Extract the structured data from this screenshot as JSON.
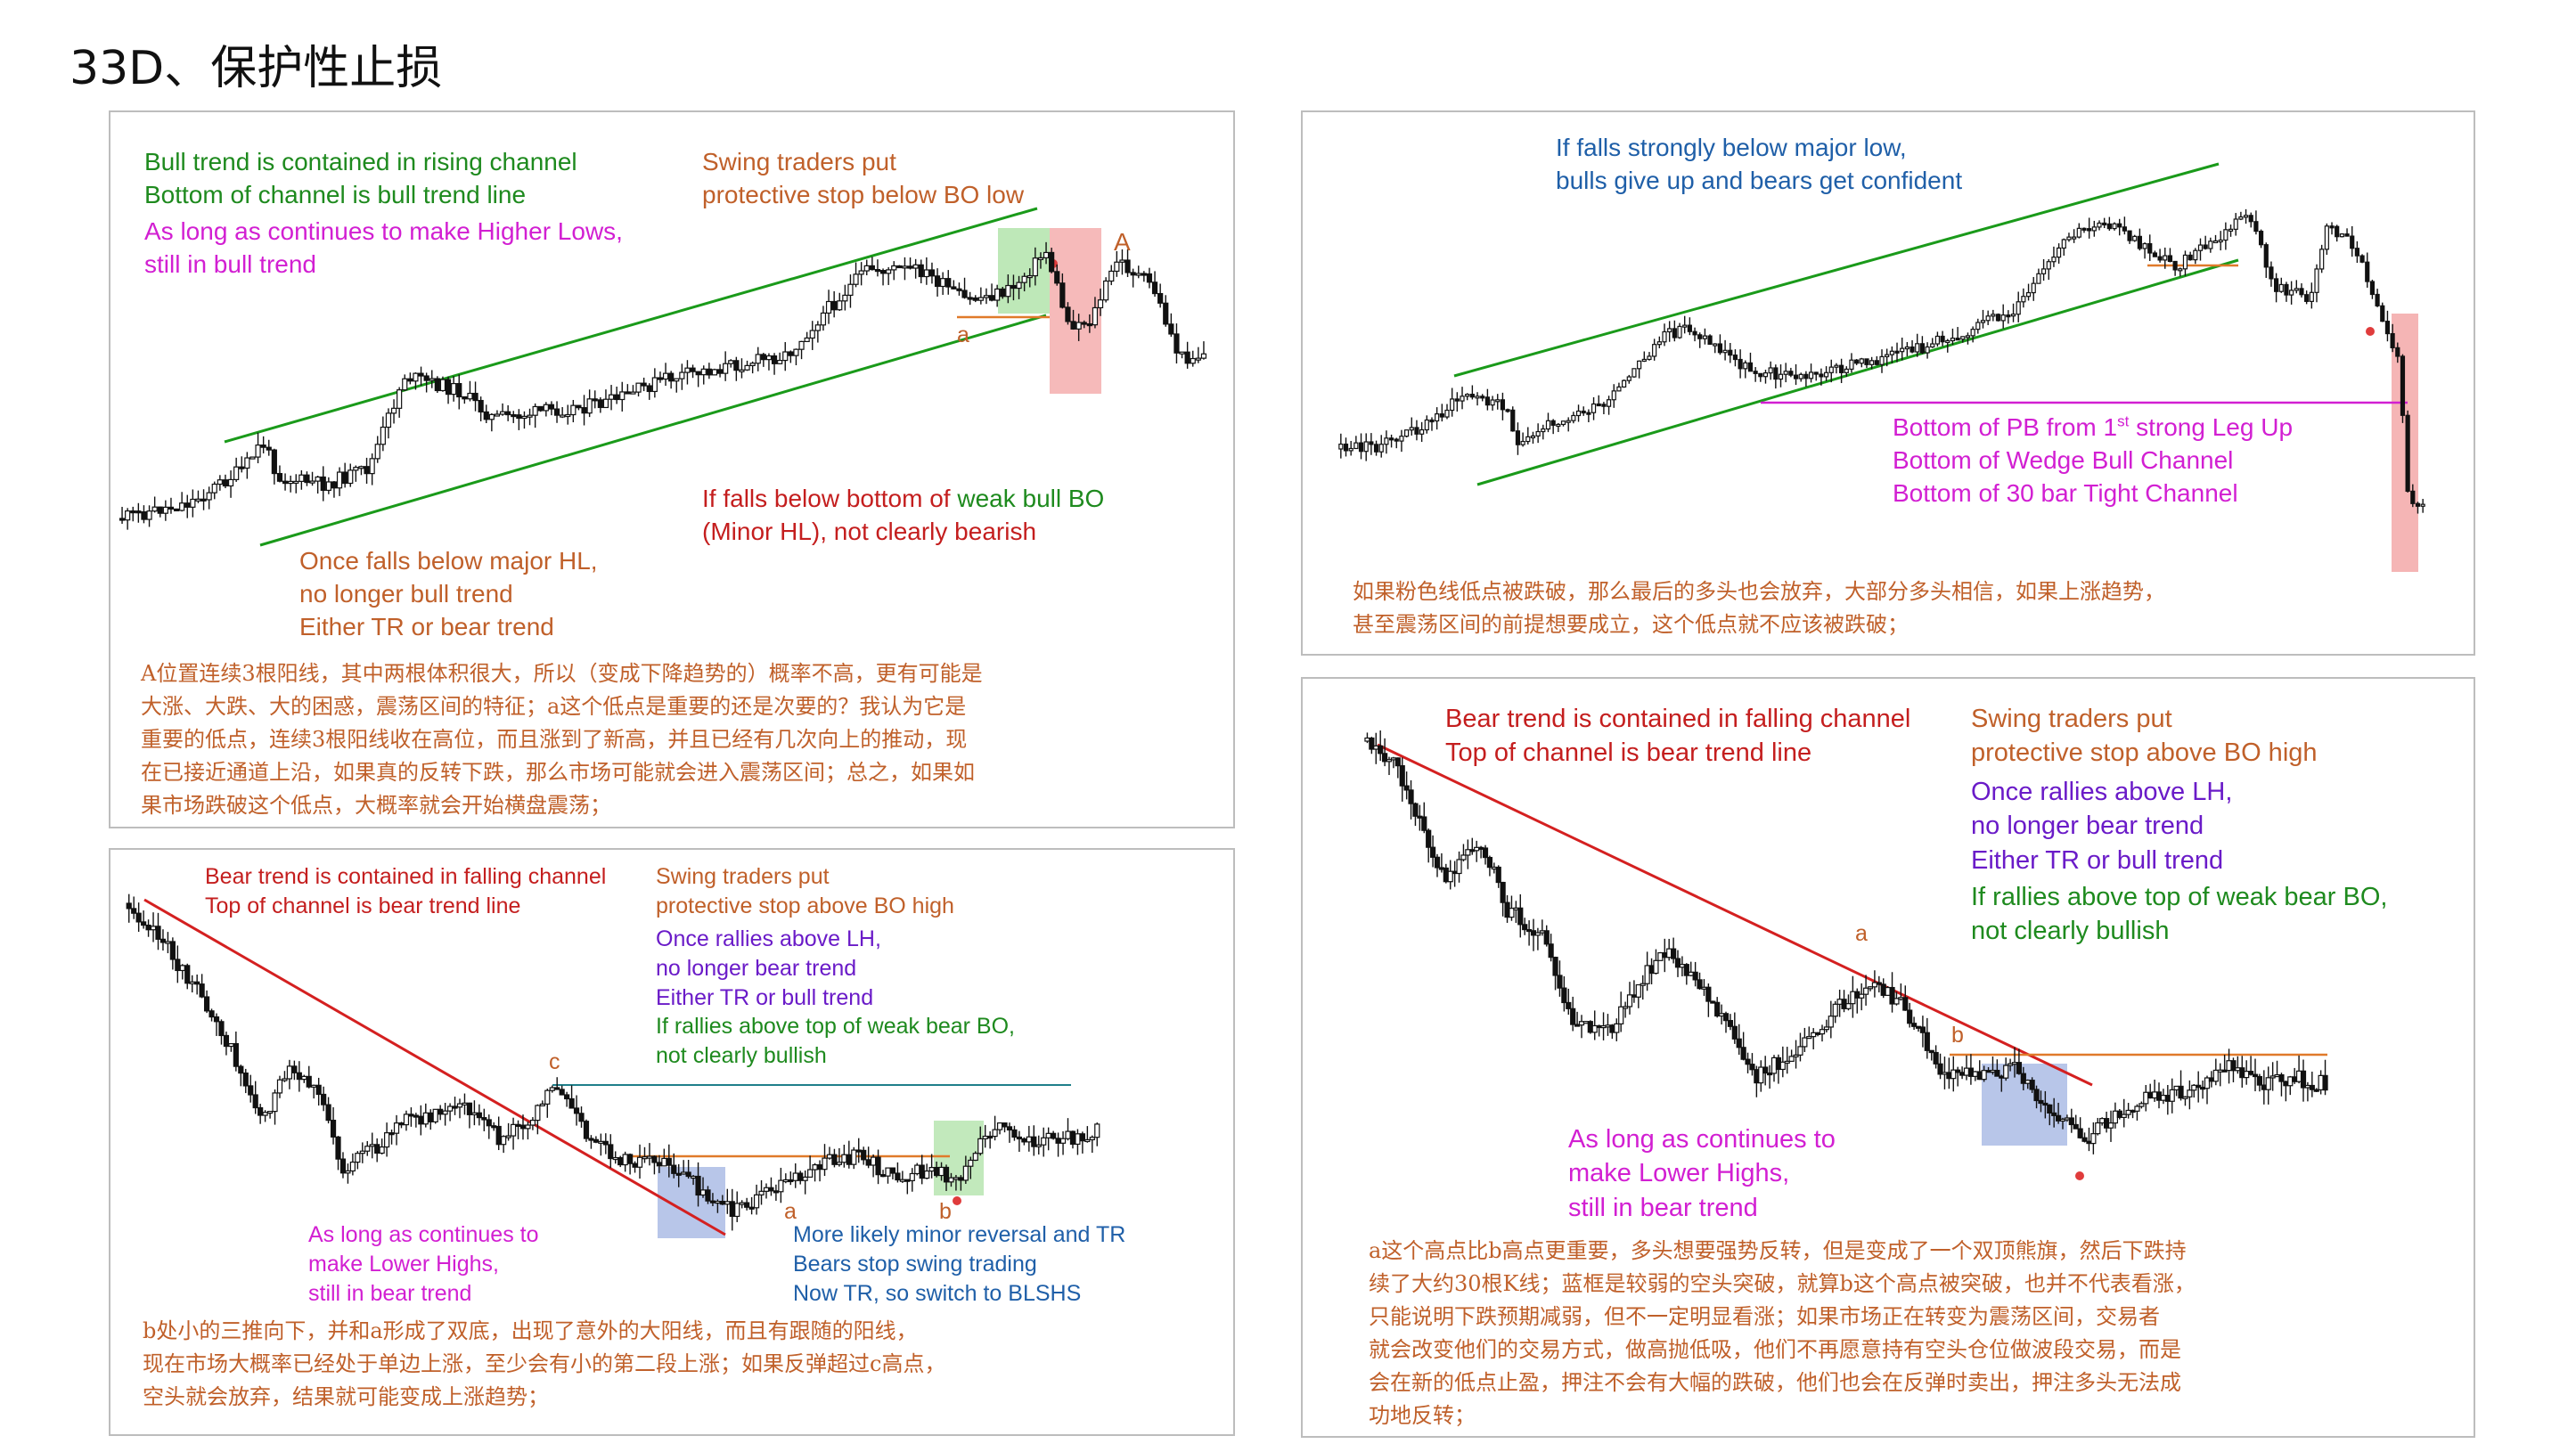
{
  "page_title": "33D、保护性止损",
  "panel1": {
    "bull_channel": [
      "Bull trend is contained in rising channel",
      "Bottom of channel is bull trend line"
    ],
    "higher_lows": [
      "As long as continues to make Higher Lows,",
      "still in bull trend"
    ],
    "swing_stop": [
      "Swing traders put",
      "protective stop below BO low"
    ],
    "weak_bo_1": "If falls below bottom of",
    "weak_bo_2": "weak bull BO",
    "weak_bo_3": "(Minor HL), not clearly bearish",
    "major_hl": [
      "Once falls below major HL,",
      "no longer bull trend",
      "Either TR or bear trend"
    ],
    "mark_a": "a",
    "mark_A": "A",
    "zh": [
      "A位置连续3根阳线，其中两根体积很大，所以（变成下降趋势的）概率不高，更有可能是",
      "大涨、大跌、大的困惑，震荡区间的特征；a这个低点是重要的还是次要的？我认为它是",
      "重要的低点，连续3根阳线收在高位，而且涨到了新高，并且已经有几次向上的推动，现",
      "在已接近通道上沿，如果真的反转下跌，那么市场可能就会进入震荡区间；总之，如果如",
      "果市场跌破这个低点，大概率就会开始横盘震荡；"
    ]
  },
  "panel2": {
    "strong_below": [
      "If falls strongly below major low,",
      "bulls give up and bears get confident"
    ],
    "pb_1_pre": "Bottom of PB from 1",
    "pb_1_sup": "st",
    "pb_1_post": " strong Leg Up",
    "pb_2": "Bottom of Wedge Bull Channel",
    "pb_3": "Bottom of 30 bar Tight Channel",
    "zh": [
      "如果粉色线低点被跌破，那么最后的多头也会放弃，大部分多头相信，如果上涨趋势，",
      "甚至震荡区间的前提想要成立，这个低点就不应该被跌破；"
    ]
  },
  "panel3": {
    "bear_channel": [
      "Bear trend is contained in falling channel",
      "Top of channel is bear trend line"
    ],
    "swing_stop": [
      "Swing traders put",
      "protective stop above BO high"
    ],
    "rallies_lh": [
      "Once rallies above LH,",
      "no longer bear trend",
      "Either TR or bull trend"
    ],
    "weak_bear": [
      "If rallies above top of weak bear BO,",
      "not clearly bullish"
    ],
    "lower_highs": [
      "As long as continues to",
      "make Lower Highs,",
      "still in bear trend"
    ],
    "minor_rev": [
      "More likely minor reversal and TR",
      "Bears stop swing trading",
      "Now TR, so switch to BLSHS"
    ],
    "mark_a": "a",
    "mark_b": "b",
    "mark_c": "c",
    "zh": [
      "b处小的三推向下，并和a形成了双底，出现了意外的大阳线，而且有跟随的阳线，",
      "现在市场大概率已经处于单边上涨，至少会有小的第二段上涨；如果反弹超过c高点，",
      "空头就会放弃，结果就可能变成上涨趋势；"
    ]
  },
  "panel4": {
    "bear_channel": [
      "Bear trend is contained in falling channel",
      "Top of channel is bear trend line"
    ],
    "swing_stop": [
      "Swing traders put",
      "protective stop above BO high"
    ],
    "rallies_lh": [
      "Once rallies above LH,",
      "no longer bear trend",
      "Either TR or bull trend"
    ],
    "weak_bear": [
      "If rallies above top of weak bear BO,",
      "not clearly bullish"
    ],
    "lower_highs": [
      "As long as continues to",
      "make Lower Highs,",
      "still in bear trend"
    ],
    "mark_a": "a",
    "mark_b": "b",
    "zh": [
      "a这个高点比b高点更重要，多头想要强势反转，但是变成了一个双顶熊旗，然后下跌持",
      "续了大约30根K线；蓝框是较弱的空头突破，就算b这个高点被突破，也并不代表看涨，",
      "只能说明下跌预期减弱，但不一定明显看涨；如果市场正在转变为震荡区间，交易者",
      "就会改变他们的交易方式，做高抛低吸，他们不再愿意持有空头仓位做波段交易，而是",
      "会在新的低点止盈，押注不会有大幅的跌破，他们也会在反弹时卖出，押注多头无法成",
      "功地反转；"
    ]
  },
  "colors": {
    "channel_green": "#1a9a1a",
    "trend_red": "#d42020",
    "stop_orange": "#e07a2a",
    "pb_magenta": "#d21fd2",
    "c_teal": "#1f7f8a",
    "box_green": "#a8e0a0",
    "box_red": "#f3a3a3",
    "box_blue": "#9aaee0"
  }
}
